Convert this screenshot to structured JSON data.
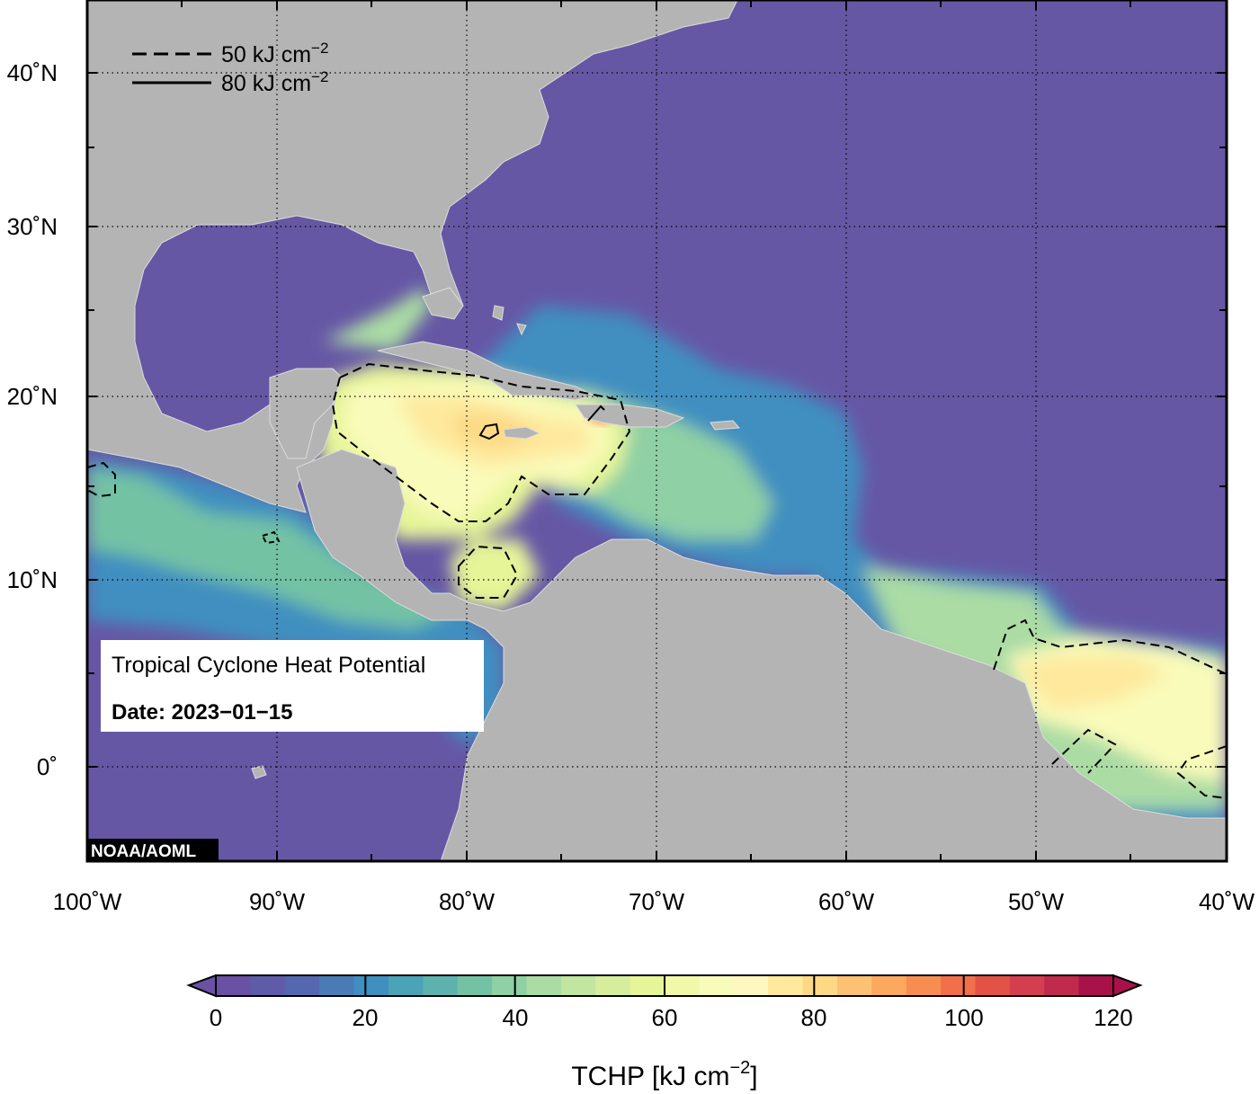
{
  "map": {
    "lat_labels": [
      "40˚N",
      "30˚N",
      "20˚N",
      "10˚N",
      "0˚"
    ],
    "lon_labels": [
      "100˚W",
      "90˚W",
      "80˚W",
      "70˚W",
      "60˚W",
      "50˚W",
      "40˚W"
    ],
    "legend": [
      {
        "style": "dashed",
        "label": "50 kJ cm",
        "sup": "−2"
      },
      {
        "style": "solid",
        "label": "80 kJ cm",
        "sup": "−2"
      }
    ],
    "info_title": "Tropical Cyclone Heat Potential",
    "info_date": "Date: 2023−01−15",
    "credit": "NOAA/AOML",
    "colors": {
      "ocean_low": "#6657a5",
      "land": "#b4b4b4",
      "grid": "#000000"
    }
  },
  "colorbar": {
    "ticks": [
      "0",
      "20",
      "40",
      "60",
      "80",
      "100",
      "120"
    ],
    "title": "TCHP [kJ cm",
    "title_sup": "−2",
    "title_end": "]",
    "colors": [
      "#6a51a3",
      "#5e5ca8",
      "#5567ae",
      "#4a7bb7",
      "#3f8fc0",
      "#4aa3b7",
      "#5eb2ad",
      "#73c2a4",
      "#8fd0a4",
      "#aadca4",
      "#c2e5a0",
      "#d6ee9b",
      "#e6f598",
      "#f1f9a8",
      "#f9fbba",
      "#fff7c0",
      "#fee99d",
      "#fdd985",
      "#fdc173",
      "#fca85f",
      "#f88d52",
      "#f1704a",
      "#e35345",
      "#d53e4f",
      "#c02a4c",
      "#a8114a"
    ]
  }
}
